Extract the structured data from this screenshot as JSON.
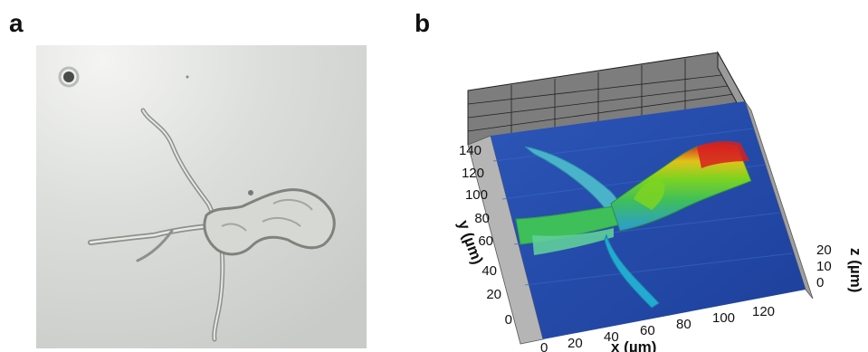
{
  "panel_a": {
    "label": "a"
  },
  "panel_b": {
    "label": "b",
    "x_axis_label": "x (µm)",
    "y_axis_label": "y (µm)",
    "z_axis_label": "z (µm)",
    "x_ticks": [
      "0",
      "20",
      "40",
      "60",
      "80",
      "100",
      "120"
    ],
    "y_ticks": [
      "0",
      "20",
      "40",
      "60",
      "80",
      "100",
      "120",
      "140"
    ],
    "z_ticks": [
      "0",
      "10",
      "20"
    ],
    "colormap": [
      "#1f3f9e",
      "#2a9bd6",
      "#3fbf5a",
      "#7ed321",
      "#e0c21a",
      "#d62020"
    ]
  }
}
